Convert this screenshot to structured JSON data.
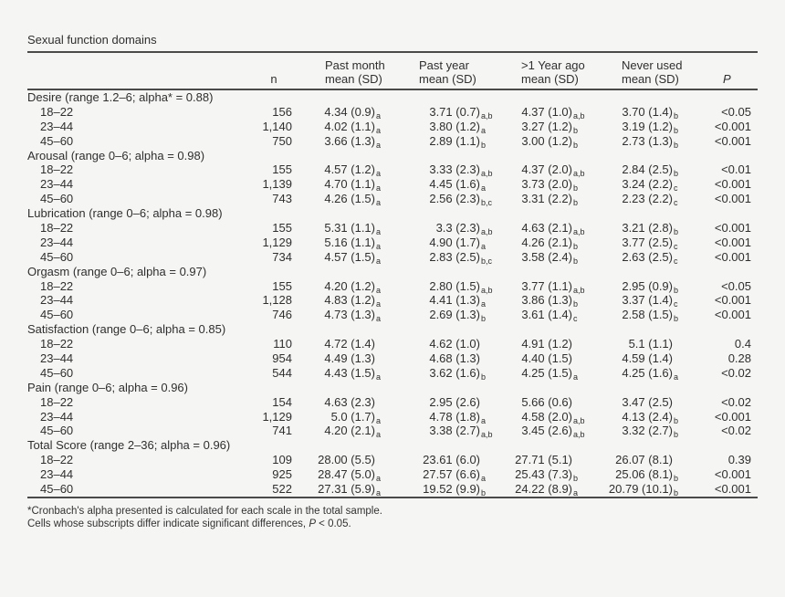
{
  "table": {
    "title": "Sexual function domains",
    "header": {
      "n": "n",
      "p": "P",
      "cols": [
        {
          "line1": "Past month",
          "line2": "mean (SD)"
        },
        {
          "line1": "Past year",
          "line2": "mean (SD)"
        },
        {
          "line1": ">1 Year ago",
          "line2": "mean (SD)"
        },
        {
          "line1": "Never used",
          "line2": "mean (SD)"
        }
      ]
    },
    "sections": [
      {
        "label": "Desire (range 1.2–6; alpha* = 0.88)",
        "rows": [
          {
            "age": "18–22",
            "n": "156",
            "cells": [
              {
                "v": "4.34 (0.9)",
                "s": "a"
              },
              {
                "v": "3.71 (0.7)",
                "s": "a,b"
              },
              {
                "v": "4.37 (1.0)",
                "s": "a,b"
              },
              {
                "v": "3.70 (1.4)",
                "s": "b"
              }
            ],
            "p": "<0.05"
          },
          {
            "age": "23–44",
            "n": "1,140",
            "cells": [
              {
                "v": "4.02 (1.1)",
                "s": "a"
              },
              {
                "v": "3.80 (1.2)",
                "s": "a"
              },
              {
                "v": "3.27 (1.2)",
                "s": "b"
              },
              {
                "v": "3.19 (1.2)",
                "s": "b"
              }
            ],
            "p": "<0.001"
          },
          {
            "age": "45–60",
            "n": "750",
            "cells": [
              {
                "v": "3.66 (1.3)",
                "s": "a"
              },
              {
                "v": "2.89 (1.1)",
                "s": "b"
              },
              {
                "v": "3.00 (1.2)",
                "s": "b"
              },
              {
                "v": "2.73 (1.3)",
                "s": "b"
              }
            ],
            "p": "<0.001"
          }
        ]
      },
      {
        "label": "Arousal (range 0–6; alpha = 0.98)",
        "rows": [
          {
            "age": "18–22",
            "n": "155",
            "cells": [
              {
                "v": "4.57 (1.2)",
                "s": "a"
              },
              {
                "v": "3.33 (2.3)",
                "s": "a,b"
              },
              {
                "v": "4.37 (2.0)",
                "s": "a,b"
              },
              {
                "v": "2.84 (2.5)",
                "s": "b"
              }
            ],
            "p": "<0.01"
          },
          {
            "age": "23–44",
            "n": "1,139",
            "cells": [
              {
                "v": "4.70 (1.1)",
                "s": "a"
              },
              {
                "v": "4.45 (1.6)",
                "s": "a"
              },
              {
                "v": "3.73 (2.0)",
                "s": "b"
              },
              {
                "v": "3.24 (2.2)",
                "s": "c"
              }
            ],
            "p": "<0.001"
          },
          {
            "age": "45–60",
            "n": "743",
            "cells": [
              {
                "v": "4.26 (1.5)",
                "s": "a"
              },
              {
                "v": "2.56 (2.3)",
                "s": "b,c"
              },
              {
                "v": "3.31 (2.2)",
                "s": "b"
              },
              {
                "v": "2.23 (2.2)",
                "s": "c"
              }
            ],
            "p": "<0.001"
          }
        ]
      },
      {
        "label": "Lubrication (range 0–6; alpha = 0.98)",
        "rows": [
          {
            "age": "18–22",
            "n": "155",
            "cells": [
              {
                "v": "5.31 (1.1)",
                "s": "a"
              },
              {
                "v": "3.3 (2.3)",
                "s": "a,b"
              },
              {
                "v": "4.63 (2.1)",
                "s": "a,b"
              },
              {
                "v": "3.21 (2.8)",
                "s": "b"
              }
            ],
            "p": "<0.001"
          },
          {
            "age": "23–44",
            "n": "1,129",
            "cells": [
              {
                "v": "5.16 (1.1)",
                "s": "a"
              },
              {
                "v": "4.90 (1.7)",
                "s": "a"
              },
              {
                "v": "4.26 (2.1)",
                "s": "b"
              },
              {
                "v": "3.77 (2.5)",
                "s": "c"
              }
            ],
            "p": "<0.001"
          },
          {
            "age": "45–60",
            "n": "734",
            "cells": [
              {
                "v": "4.57 (1.5)",
                "s": "a"
              },
              {
                "v": "2.83 (2.5)",
                "s": "b,c"
              },
              {
                "v": "3.58 (2.4)",
                "s": "b"
              },
              {
                "v": "2.63 (2.5)",
                "s": "c"
              }
            ],
            "p": "<0.001"
          }
        ]
      },
      {
        "label": "Orgasm (range 0–6; alpha = 0.97)",
        "rows": [
          {
            "age": "18–22",
            "n": "155",
            "cells": [
              {
                "v": "4.20 (1.2)",
                "s": "a"
              },
              {
                "v": "2.80 (1.5)",
                "s": "a,b"
              },
              {
                "v": "3.77 (1.1)",
                "s": "a,b"
              },
              {
                "v": "2.95 (0.9)",
                "s": "b"
              }
            ],
            "p": "<0.05"
          },
          {
            "age": "23–44",
            "n": "1,128",
            "cells": [
              {
                "v": "4.83 (1.2)",
                "s": "a"
              },
              {
                "v": "4.41 (1.3)",
                "s": "a"
              },
              {
                "v": "3.86 (1.3)",
                "s": "b"
              },
              {
                "v": "3.37 (1.4)",
                "s": "c"
              }
            ],
            "p": "<0.001"
          },
          {
            "age": "45–60",
            "n": "746",
            "cells": [
              {
                "v": "4.73 (1.3)",
                "s": "a"
              },
              {
                "v": "2.69 (1.3)",
                "s": "b"
              },
              {
                "v": "3.61 (1.4)",
                "s": "c"
              },
              {
                "v": "2.58 (1.5)",
                "s": "b"
              }
            ],
            "p": "<0.001"
          }
        ]
      },
      {
        "label": "Satisfaction (range 0–6; alpha = 0.85)",
        "rows": [
          {
            "age": "18–22",
            "n": "110",
            "cells": [
              {
                "v": "4.72 (1.4)",
                "s": ""
              },
              {
                "v": "4.62 (1.0)",
                "s": ""
              },
              {
                "v": "4.91 (1.2)",
                "s": ""
              },
              {
                "v": "5.1 (1.1)",
                "s": ""
              }
            ],
            "p": "0.4"
          },
          {
            "age": "23–44",
            "n": "954",
            "cells": [
              {
                "v": "4.49 (1.3)",
                "s": ""
              },
              {
                "v": "4.68 (1.3)",
                "s": ""
              },
              {
                "v": "4.40 (1.5)",
                "s": ""
              },
              {
                "v": "4.59 (1.4)",
                "s": ""
              }
            ],
            "p": "0.28"
          },
          {
            "age": "45–60",
            "n": "544",
            "cells": [
              {
                "v": "4.43 (1.5)",
                "s": "a"
              },
              {
                "v": "3.62 (1.6)",
                "s": "b"
              },
              {
                "v": "4.25 (1.5)",
                "s": "a"
              },
              {
                "v": "4.25 (1.6)",
                "s": "a"
              }
            ],
            "p": "<0.02"
          }
        ]
      },
      {
        "label": "Pain (range 0–6; alpha = 0.96)",
        "rows": [
          {
            "age": "18–22",
            "n": "154",
            "cells": [
              {
                "v": "4.63 (2.3)",
                "s": ""
              },
              {
                "v": "2.95 (2.6)",
                "s": ""
              },
              {
                "v": "5.66 (0.6)",
                "s": ""
              },
              {
                "v": "3.47 (2.5)",
                "s": ""
              }
            ],
            "p": "<0.02"
          },
          {
            "age": "23–44",
            "n": "1,129",
            "cells": [
              {
                "v": "5.0 (1.7)",
                "s": "a"
              },
              {
                "v": "4.78 (1.8)",
                "s": "a"
              },
              {
                "v": "4.58 (2.0)",
                "s": "a,b"
              },
              {
                "v": "4.13 (2.4)",
                "s": "b"
              }
            ],
            "p": "<0.001"
          },
          {
            "age": "45–60",
            "n": "741",
            "cells": [
              {
                "v": "4.20 (2.1)",
                "s": "a"
              },
              {
                "v": "3.38 (2.7)",
                "s": "a,b"
              },
              {
                "v": "3.45 (2.6)",
                "s": "a,b"
              },
              {
                "v": "3.32 (2.7)",
                "s": "b"
              }
            ],
            "p": "<0.02"
          }
        ]
      },
      {
        "label": "Total Score (range 2–36; alpha = 0.96)",
        "rows": [
          {
            "age": "18–22",
            "n": "109",
            "cells": [
              {
                "v": "28.00 (5.5)",
                "s": ""
              },
              {
                "v": "23.61 (6.0)",
                "s": ""
              },
              {
                "v": "27.71 (5.1)",
                "s": ""
              },
              {
                "v": "26.07 (8.1)",
                "s": ""
              }
            ],
            "p": "0.39"
          },
          {
            "age": "23–44",
            "n": "925",
            "cells": [
              {
                "v": "28.47 (5.0)",
                "s": "a"
              },
              {
                "v": "27.57 (6.6)",
                "s": "a"
              },
              {
                "v": "25.43 (7.3)",
                "s": "b"
              },
              {
                "v": "25.06 (8.1)",
                "s": "b"
              }
            ],
            "p": "<0.001"
          },
          {
            "age": "45–60",
            "n": "522",
            "cells": [
              {
                "v": "27.31 (5.9)",
                "s": "a"
              },
              {
                "v": "19.52 (9.9)",
                "s": "b"
              },
              {
                "v": "24.22 (8.9)",
                "s": "a"
              },
              {
                "v": "20.79 (10.1)",
                "s": "b"
              }
            ],
            "p": "<0.001"
          }
        ]
      }
    ],
    "footnotes": {
      "line1": "*Cronbach's alpha presented is calculated for each scale in the total sample.",
      "line2_pre": "Cells whose subscripts differ indicate significant differences, ",
      "line2_p": "P",
      "line2_post": " < 0.05."
    }
  }
}
